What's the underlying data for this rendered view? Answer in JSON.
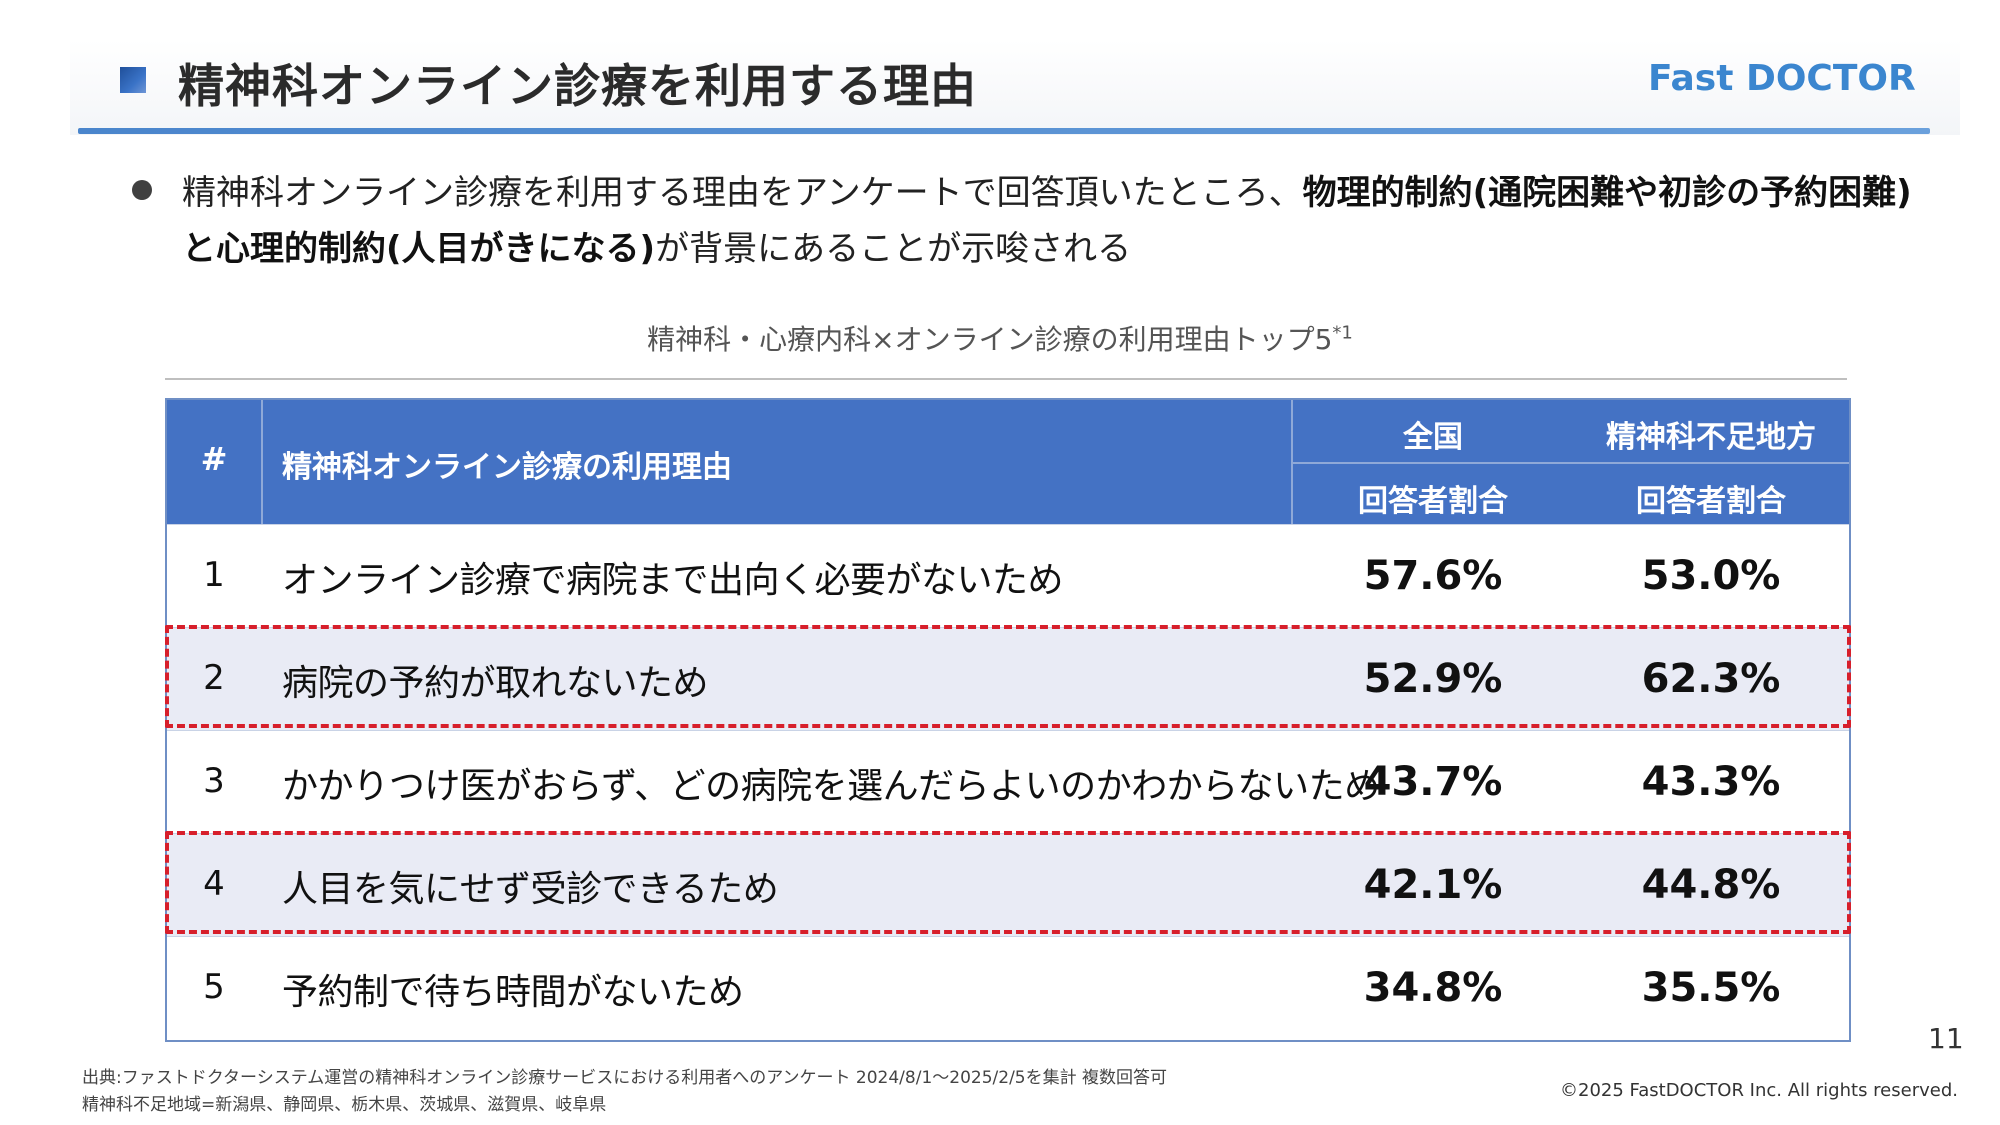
{
  "header": {
    "title": "精神科オンライン診療を利用する理由",
    "logo_text": "Fast DOCTOR",
    "accent_color": "#4472c4",
    "logo_color": "#3b86cf"
  },
  "summary": {
    "part1": "精神科オンライン診療を利用する理由をアンケートで回答頂いたところ、",
    "bold1": "物理的制約(通院困難や初診の予約困難)と心理的制約(人目がきになる)",
    "part2": "が背景にあることが示唆される"
  },
  "table": {
    "caption": "精神科・心療内科×オンライン診療の利用理由トップ5",
    "caption_note": "*1",
    "headers": {
      "num": "#",
      "reason": "精神科オンライン診療の利用理由",
      "col1_top": "全国",
      "col1_sub": "回答者割合",
      "col2_top": "精神科不足地方",
      "col2_sub": "回答者割合"
    },
    "rows": [
      {
        "num": "1",
        "reason": "オンライン診療で病院まで出向く必要がないため",
        "national": "57.6%",
        "shortage": "53.0%",
        "highlighted": false
      },
      {
        "num": "2",
        "reason": "病院の予約が取れないため",
        "national": "52.9%",
        "shortage": "62.3%",
        "highlighted": true
      },
      {
        "num": "3",
        "reason": "かかりつけ医がおらず、どの病院を選んだらよいのかわからないため",
        "national": "43.7%",
        "shortage": "43.3%",
        "highlighted": false
      },
      {
        "num": "4",
        "reason": "人目を気にせず受診できるため",
        "national": "42.1%",
        "shortage": "44.8%",
        "highlighted": true
      },
      {
        "num": "5",
        "reason": "予約制で待ち時間がないため",
        "national": "34.8%",
        "shortage": "35.5%",
        "highlighted": false
      }
    ],
    "highlight_color": "#d71f2b"
  },
  "footer": {
    "page_number": "11",
    "source_line": "出典:ファストドクターシステム運営の精神科オンライン診療サービスにおける利用者へのアンケート 2024/8/1～2025/2/5を集計 複数回答可",
    "region_line": "精神科不足地域=新潟県、静岡県、栃木県、茨城県、滋賀県、岐阜県",
    "copyright": "©2025 FastDOCTOR Inc. All rights reserved."
  }
}
